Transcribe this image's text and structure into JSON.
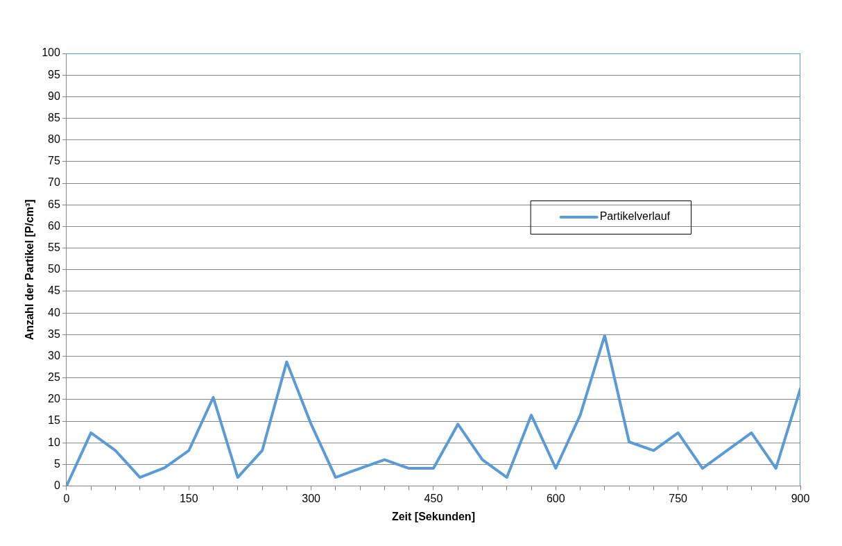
{
  "chart_data": {
    "type": "line",
    "xlabel": "Zeit [Sekunden]",
    "ylabel": "Anzahl der Partikel [P/cm³]",
    "x": [
      0,
      30,
      60,
      90,
      120,
      150,
      180,
      210,
      240,
      270,
      300,
      330,
      360,
      390,
      420,
      450,
      480,
      510,
      540,
      570,
      600,
      630,
      660,
      690,
      720,
      750,
      780,
      810,
      840,
      870,
      900
    ],
    "series": [
      {
        "name": "Partikelverlauf",
        "color": "#5b9bd5",
        "values": [
          0,
          12.3,
          8.2,
          2,
          4.2,
          8.2,
          20.5,
          2,
          8.2,
          28.7,
          14.3,
          2,
          4.1,
          6.1,
          4.1,
          4.1,
          14.3,
          6.1,
          2,
          16.4,
          4.1,
          16.4,
          34.8,
          10.2,
          8.2,
          12.3,
          4.1,
          8.2,
          12.3,
          4.1,
          22.5
        ]
      }
    ],
    "xlim": [
      0,
      900
    ],
    "xticks": [
      0,
      {
        "value": 30,
        "label": null
      },
      {
        "value": 60,
        "label": null
      },
      {
        "value": 90,
        "label": null
      },
      {
        "value": 120,
        "label": null
      },
      150,
      {
        "value": 180,
        "label": null
      },
      {
        "value": 210,
        "label": null
      },
      {
        "value": 240,
        "label": null
      },
      {
        "value": 270,
        "label": null
      },
      300,
      {
        "value": 330,
        "label": null
      },
      {
        "value": 360,
        "label": null
      },
      {
        "value": 390,
        "label": null
      },
      {
        "value": 420,
        "label": null
      },
      450,
      {
        "value": 480,
        "label": null
      },
      {
        "value": 510,
        "label": null
      },
      {
        "value": 540,
        "label": null
      },
      {
        "value": 570,
        "label": null
      },
      600,
      {
        "value": 630,
        "label": null
      },
      {
        "value": 660,
        "label": null
      },
      {
        "value": 690,
        "label": null
      },
      {
        "value": 720,
        "label": null
      },
      750,
      {
        "value": 780,
        "label": null
      },
      {
        "value": 810,
        "label": null
      },
      {
        "value": 840,
        "label": null
      },
      {
        "value": 870,
        "label": null
      },
      900
    ],
    "ylim": [
      0,
      100
    ],
    "yticks": [
      0,
      5,
      10,
      15,
      20,
      25,
      30,
      35,
      40,
      45,
      50,
      55,
      60,
      65,
      70,
      75,
      80,
      85,
      90,
      95,
      100
    ],
    "grid": "y",
    "legend": "right",
    "marker": "none",
    "line_style": "solid"
  }
}
